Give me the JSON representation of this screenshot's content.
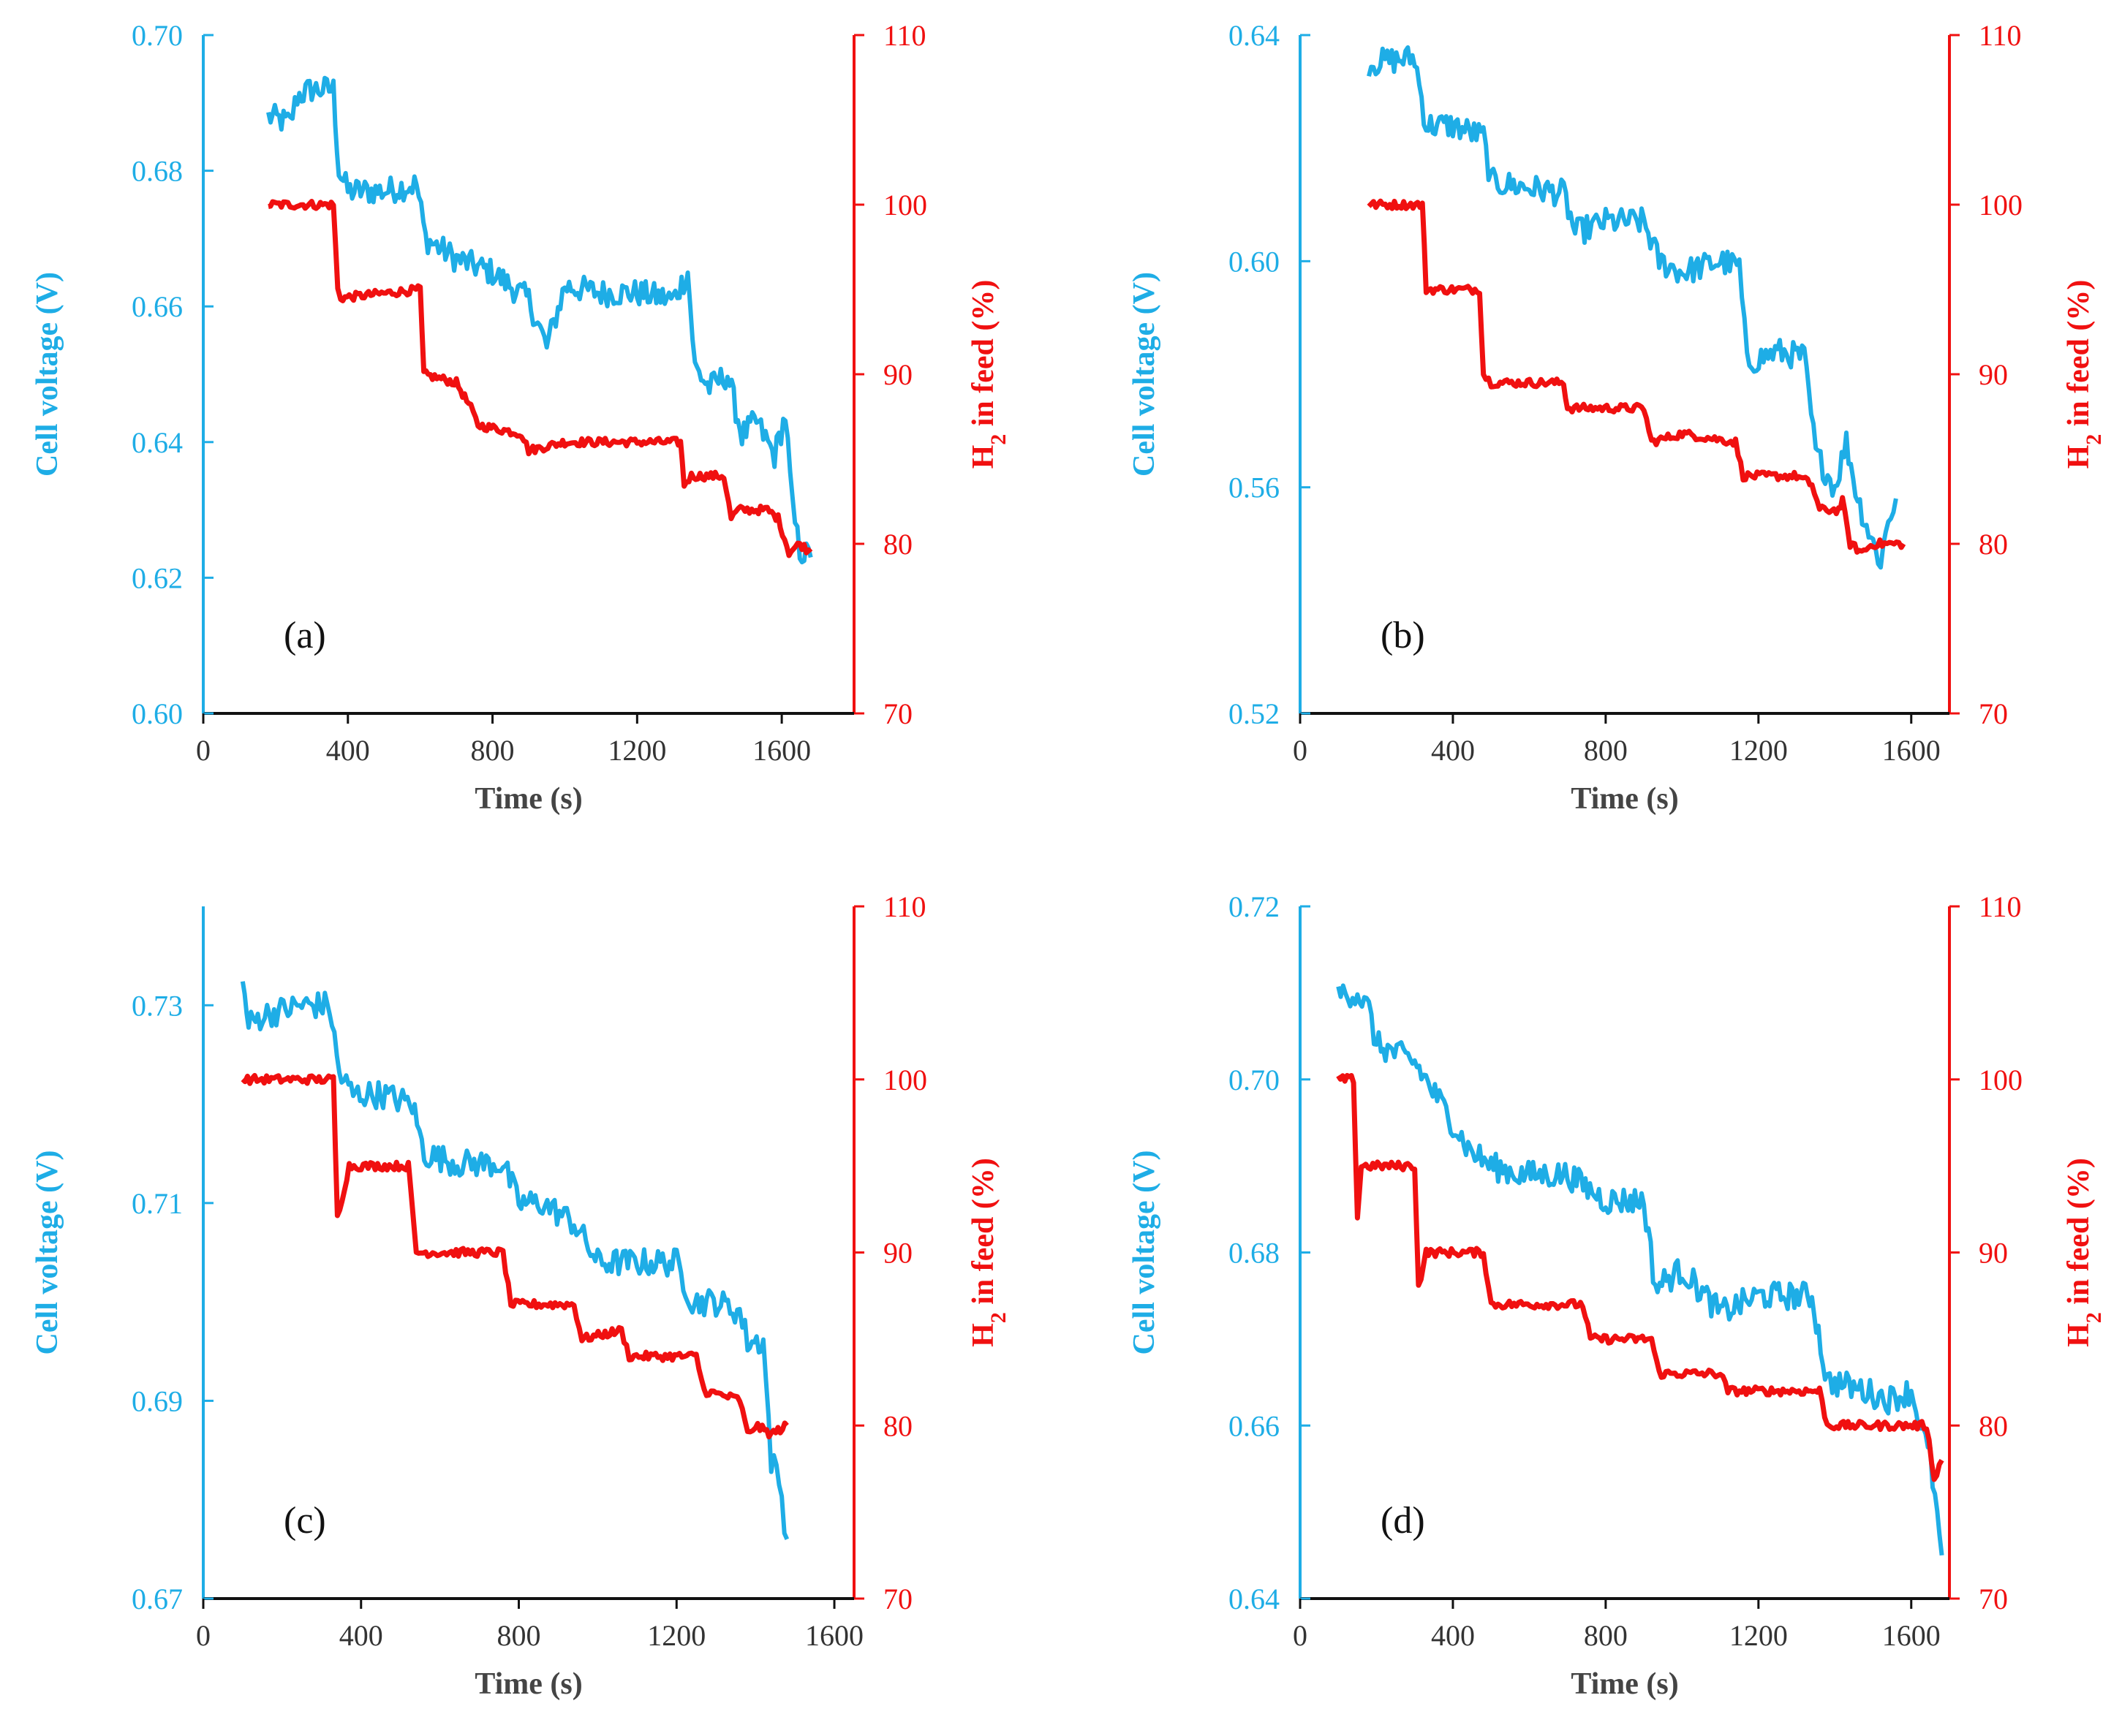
{
  "chart_data": [
    {
      "type": "line",
      "panel_label": "(a)",
      "xlabel": "Time (s)",
      "ylabel_left": "Cell voltage (V)",
      "ylabel_right_main": "H",
      "ylabel_right_sub": "2",
      "ylabel_right_rest": " in feed (%)",
      "xlim": [
        0,
        1800
      ],
      "xticks": [
        0,
        400,
        800,
        1200,
        1600
      ],
      "ylim_left": [
        0.6,
        0.7
      ],
      "yticks_left": [
        "0.60",
        "0.62",
        "0.64",
        "0.66",
        "0.68",
        "0.70"
      ],
      "ylim_right": [
        70,
        110
      ],
      "yticks_right": [
        70,
        80,
        90,
        100,
        110
      ],
      "series": [
        {
          "name": "Cell voltage",
          "axis": "left",
          "color": "#1EADE6",
          "x": [
            180,
            240,
            260,
            300,
            360,
            375,
            400,
            500,
            590,
            615,
            700,
            800,
            900,
            950,
            1000,
            1100,
            1200,
            1300,
            1340,
            1360,
            1400,
            1450,
            1490,
            1530,
            1580,
            1610,
            1630,
            1650,
            1680
          ],
          "y": [
            0.688,
            0.687,
            0.691,
            0.692,
            0.692,
            0.68,
            0.677,
            0.677,
            0.678,
            0.67,
            0.667,
            0.665,
            0.661,
            0.654,
            0.663,
            0.662,
            0.662,
            0.661,
            0.665,
            0.651,
            0.648,
            0.65,
            0.641,
            0.643,
            0.638,
            0.644,
            0.63,
            0.624,
            0.623
          ]
        },
        {
          "name": "H2 in feed",
          "axis": "right",
          "color": "#F01010",
          "x": [
            180,
            360,
            372,
            380,
            600,
            610,
            700,
            740,
            760,
            880,
            900,
            1000,
            1100,
            1200,
            1320,
            1330,
            1350,
            1380,
            1440,
            1460,
            1480,
            1560,
            1590,
            1620,
            1650,
            1680
          ],
          "y": [
            100,
            100,
            95,
            94.5,
            95,
            90,
            89.5,
            88,
            87,
            86.5,
            85.5,
            86,
            86,
            86,
            86,
            83.5,
            84,
            84,
            84,
            81.5,
            82,
            82,
            81.5,
            79.5,
            80,
            79.5
          ]
        }
      ]
    },
    {
      "type": "line",
      "panel_label": "(b)",
      "xlabel": "Time (s)",
      "ylabel_left": "Cell voltage (V)",
      "ylabel_right_main": "H",
      "ylabel_right_sub": "2",
      "ylabel_right_rest": " in feed (%)",
      "xlim": [
        0,
        1700
      ],
      "xticks": [
        0,
        400,
        800,
        1200,
        1600
      ],
      "ylim_left": [
        0.52,
        0.64
      ],
      "yticks_left": [
        "0.52",
        "0.56",
        "0.60",
        "0.64"
      ],
      "ylim_right": [
        70,
        110
      ],
      "yticks_right": [
        70,
        80,
        90,
        100,
        110
      ],
      "series": [
        {
          "name": "Cell voltage",
          "axis": "left",
          "color": "#1EADE6",
          "x": [
            180,
            300,
            330,
            400,
            480,
            500,
            600,
            690,
            720,
            800,
            900,
            940,
            1000,
            1100,
            1150,
            1170,
            1250,
            1320,
            1350,
            1400,
            1430,
            1460,
            1500,
            1520,
            1540,
            1560
          ],
          "y": [
            0.635,
            0.636,
            0.624,
            0.624,
            0.622,
            0.614,
            0.613,
            0.612,
            0.605,
            0.607,
            0.607,
            0.6,
            0.598,
            0.6,
            0.599,
            0.582,
            0.584,
            0.583,
            0.566,
            0.56,
            0.568,
            0.558,
            0.55,
            0.547,
            0.554,
            0.558
          ]
        },
        {
          "name": "H2 in feed",
          "axis": "right",
          "color": "#F01010",
          "x": [
            180,
            320,
            330,
            470,
            480,
            500,
            690,
            700,
            900,
            920,
            1000,
            1140,
            1160,
            1300,
            1340,
            1360,
            1410,
            1420,
            1440,
            1470,
            1500,
            1530,
            1580
          ],
          "y": [
            100,
            100,
            95,
            95,
            90,
            89.5,
            89.5,
            88,
            88,
            86,
            86.5,
            86,
            84,
            84,
            83.5,
            82,
            82,
            82.5,
            80,
            79.5,
            80,
            80,
            80
          ]
        }
      ]
    },
    {
      "type": "line",
      "panel_label": "(c)",
      "xlabel": "Time (s)",
      "ylabel_left": "Cell voltage (V)",
      "ylabel_right_main": "H",
      "ylabel_right_sub": "2",
      "ylabel_right_rest": " in feed (%)",
      "xlim": [
        0,
        1650
      ],
      "xticks": [
        0,
        400,
        800,
        1200,
        1600
      ],
      "ylim_left": [
        0.67,
        0.74
      ],
      "yticks_left": [
        "0.67",
        "0.69",
        "0.71",
        "0.73"
      ],
      "ylim_right": [
        70,
        110
      ],
      "yticks_right": [
        70,
        80,
        90,
        100,
        110
      ],
      "series": [
        {
          "name": "Cell voltage",
          "axis": "left",
          "color": "#1EADE6",
          "x": [
            100,
            115,
            150,
            250,
            320,
            345,
            380,
            450,
            530,
            560,
            650,
            760,
            800,
            860,
            940,
            1000,
            1100,
            1200,
            1240,
            1300,
            1360,
            1380,
            1420,
            1440,
            1460,
            1480
          ],
          "y": [
            0.732,
            0.728,
            0.729,
            0.73,
            0.73,
            0.723,
            0.721,
            0.721,
            0.72,
            0.715,
            0.714,
            0.714,
            0.71,
            0.71,
            0.708,
            0.704,
            0.704,
            0.704,
            0.7,
            0.7,
            0.699,
            0.696,
            0.696,
            0.684,
            0.682,
            0.676
          ]
        },
        {
          "name": "H2 in feed",
          "axis": "right",
          "color": "#F01010",
          "x": [
            100,
            330,
            340,
            370,
            520,
            540,
            760,
            780,
            880,
            940,
            960,
            1060,
            1080,
            1250,
            1270,
            1360,
            1380,
            1400,
            1440,
            1480
          ],
          "y": [
            100,
            100,
            92,
            95,
            95,
            90,
            90,
            87,
            87,
            87,
            85,
            85.5,
            84,
            84,
            82,
            81.5,
            79.5,
            80,
            79.5,
            80
          ]
        }
      ]
    },
    {
      "type": "line",
      "panel_label": "(d)",
      "xlabel": "Time (s)",
      "ylabel_left": "Cell voltage (V)",
      "ylabel_right_main": "H",
      "ylabel_right_sub": "2",
      "ylabel_right_rest": " in feed (%)",
      "xlim": [
        0,
        1700
      ],
      "xticks": [
        0,
        400,
        800,
        1200,
        1600
      ],
      "ylim_left": [
        0.64,
        0.72
      ],
      "yticks_left": [
        "0.64",
        "0.66",
        "0.68",
        "0.70",
        "0.72"
      ],
      "ylim_right": [
        70,
        110
      ],
      "yticks_right": [
        70,
        80,
        90,
        100,
        110
      ],
      "series": [
        {
          "name": "Cell voltage",
          "axis": "left",
          "color": "#1EADE6",
          "x": [
            100,
            150,
            180,
            200,
            300,
            400,
            440,
            500,
            580,
            700,
            800,
            900,
            930,
            1000,
            1100,
            1200,
            1300,
            1340,
            1380,
            1400,
            1480,
            1540,
            1600,
            1650,
            1680
          ],
          "y": [
            0.71,
            0.71,
            0.708,
            0.704,
            0.702,
            0.695,
            0.692,
            0.69,
            0.689,
            0.689,
            0.686,
            0.686,
            0.676,
            0.678,
            0.673,
            0.675,
            0.675,
            0.675,
            0.665,
            0.665,
            0.664,
            0.663,
            0.664,
            0.656,
            0.645
          ]
        },
        {
          "name": "H2 in feed",
          "axis": "right",
          "color": "#F01010",
          "x": [
            100,
            140,
            150,
            160,
            300,
            310,
            330,
            480,
            500,
            740,
            760,
            920,
            940,
            1100,
            1120,
            1360,
            1380,
            1640,
            1660,
            1680
          ],
          "y": [
            100,
            100,
            92,
            95,
            95,
            88,
            90,
            90,
            87,
            87,
            85,
            85,
            83,
            83,
            82,
            82,
            80,
            80,
            77,
            78
          ]
        }
      ]
    }
  ]
}
